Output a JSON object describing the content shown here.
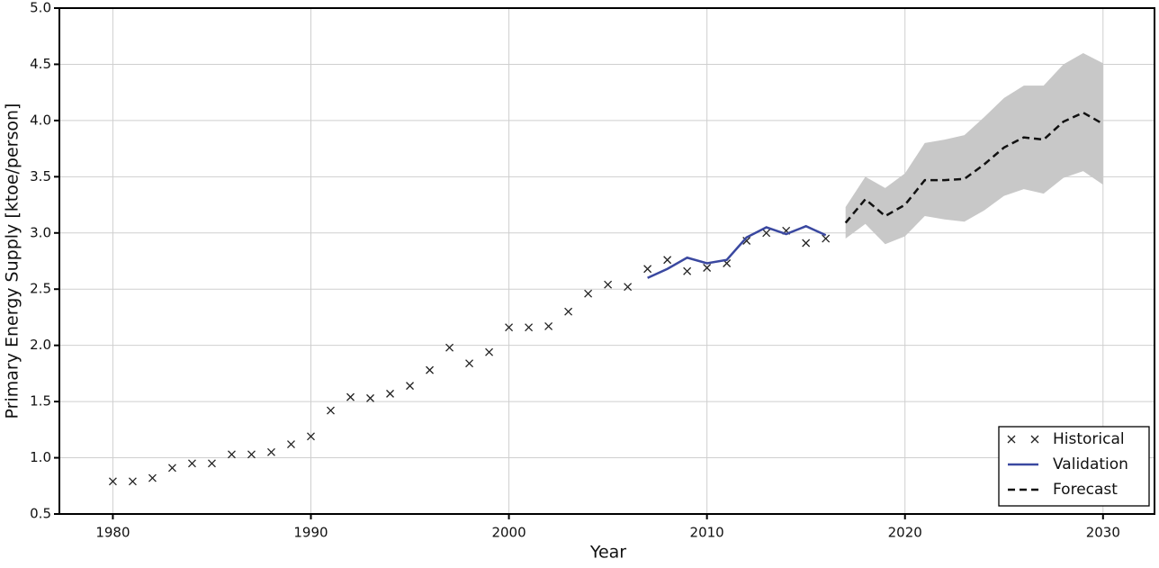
{
  "chart_data": {
    "type": "line",
    "xlabel": "Year",
    "ylabel": "Primary Energy Supply [ktoe/person]",
    "xlim": [
      1977.3,
      2032.6
    ],
    "xticks": [
      1980,
      1990,
      2000,
      2010,
      2020,
      2030
    ],
    "ylim": [
      0.5,
      5.0
    ],
    "yticks": [
      0.5,
      {
        "value": 1,
        "label": "1.0"
      },
      1.5,
      {
        "value": 2,
        "label": "2.0"
      },
      2.5,
      {
        "value": 3,
        "label": "3.0"
      },
      3.5,
      {
        "value": 4,
        "label": "4.0"
      },
      4.5,
      {
        "value": 5,
        "label": "5.0"
      }
    ],
    "grid": true,
    "legend": "lower right",
    "series": [
      {
        "name": "Historical",
        "color": "#222222",
        "marker": "x",
        "x": [
          1980,
          1981,
          1982,
          1983,
          1984,
          1985,
          1986,
          1987,
          1988,
          1989,
          1990,
          1991,
          1992,
          1993,
          1994,
          1995,
          1996,
          1997,
          1998,
          1999,
          2000,
          2001,
          2002,
          2003,
          2004,
          2005,
          2006,
          2007,
          2008,
          2009,
          2010,
          2011,
          2012,
          2013,
          2014,
          2015,
          2016
        ],
        "values": [
          0.79,
          0.79,
          0.82,
          0.91,
          0.95,
          0.95,
          1.03,
          1.03,
          1.05,
          1.12,
          1.19,
          1.42,
          1.54,
          1.53,
          1.57,
          1.64,
          1.78,
          1.98,
          1.84,
          1.94,
          2.16,
          2.16,
          2.17,
          2.3,
          2.46,
          2.54,
          2.52,
          2.68,
          2.76,
          2.66,
          2.69,
          2.73,
          2.93,
          3.0,
          3.02,
          2.91,
          2.95
        ]
      },
      {
        "name": "Validation",
        "color": "#3a48a0",
        "linestyle": "solid",
        "x": [
          2007,
          2008,
          2009,
          2010,
          2011,
          2012,
          2013,
          2014,
          2015,
          2016
        ],
        "values": [
          2.6,
          2.68,
          2.78,
          2.73,
          2.76,
          2.96,
          3.05,
          2.99,
          3.06,
          2.98
        ]
      },
      {
        "name": "Forecast",
        "color": "#111111",
        "linestyle": "dashed",
        "band_color": "#c8c8c8",
        "x": [
          2017,
          2018,
          2019,
          2020,
          2021,
          2022,
          2023,
          2024,
          2025,
          2026,
          2027,
          2028,
          2029,
          2030
        ],
        "values": [
          3.09,
          3.3,
          3.15,
          3.25,
          3.47,
          3.47,
          3.48,
          3.61,
          3.76,
          3.85,
          3.83,
          3.99,
          4.07,
          3.97
        ],
        "lower": [
          2.95,
          3.08,
          2.9,
          2.97,
          3.15,
          3.12,
          3.1,
          3.2,
          3.33,
          3.39,
          3.35,
          3.49,
          3.55,
          3.43
        ],
        "upper": [
          3.23,
          3.5,
          3.4,
          3.53,
          3.8,
          3.83,
          3.87,
          4.03,
          4.2,
          4.31,
          4.31,
          4.5,
          4.6,
          4.51
        ]
      }
    ]
  }
}
